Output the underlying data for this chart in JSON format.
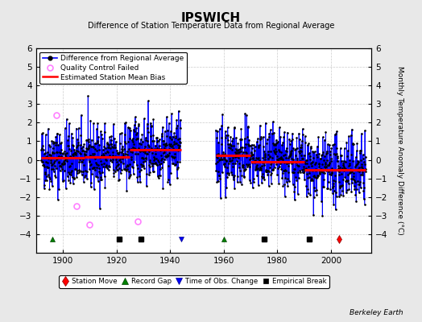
{
  "title": "IPSWICH",
  "subtitle": "Difference of Station Temperature Data from Regional Average",
  "ylabel_right": "Monthly Temperature Anomaly Difference (°C)",
  "credit": "Berkeley Earth",
  "ylim": [
    -5,
    6
  ],
  "yticks": [
    -4,
    -3,
    -2,
    -1,
    0,
    1,
    2,
    3,
    4,
    5,
    6
  ],
  "xlim": [
    1890,
    2015
  ],
  "xticks": [
    1900,
    1920,
    1940,
    1960,
    1980,
    2000
  ],
  "bg_color": "#e8e8e8",
  "plot_bg_color": "#ffffff",
  "grid_color": "#cccccc",
  "segment_biases": [
    {
      "start": 1892,
      "end": 1908,
      "bias": 0.1
    },
    {
      "start": 1908,
      "end": 1925,
      "bias": 0.15
    },
    {
      "start": 1925,
      "end": 1944,
      "bias": 0.55
    },
    {
      "start": 1957,
      "end": 1970,
      "bias": 0.25
    },
    {
      "start": 1970,
      "end": 1990,
      "bias": -0.1
    },
    {
      "start": 1990,
      "end": 2013,
      "bias": -0.55
    }
  ],
  "station_moves": [
    2003
  ],
  "record_gaps": [
    1896,
    1960
  ],
  "time_of_obs_changes": [
    1944
  ],
  "empirical_breaks": [
    1921,
    1929,
    1975,
    1992
  ],
  "qc_failed_approx": [
    {
      "t": 1897.5,
      "v": 2.4
    },
    {
      "t": 1905.0,
      "v": -2.5
    },
    {
      "t": 1910.0,
      "v": -3.5
    },
    {
      "t": 1928.0,
      "v": -3.3
    }
  ],
  "seed": 42
}
